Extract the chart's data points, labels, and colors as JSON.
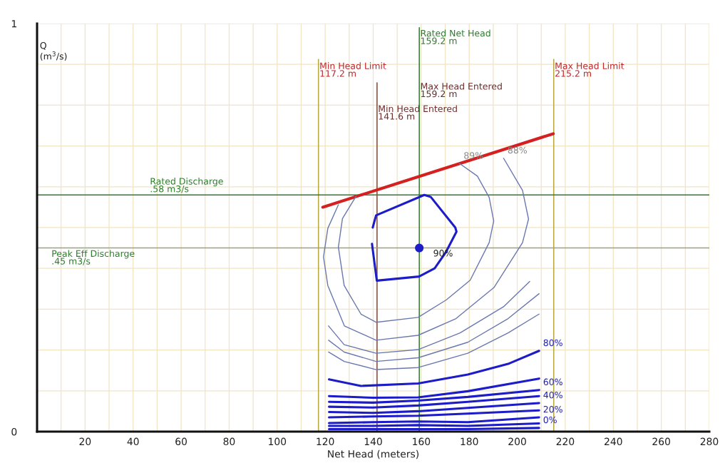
{
  "chart_data": {
    "type": "line",
    "xlabel": "Net Head (meters)",
    "ylabel": "Q\n(m$^{3}$/s)",
    "xlim": [
      0,
      280
    ],
    "ylim": [
      0,
      1
    ],
    "xticks": [
      {
        "value": 0,
        "label": null
      },
      {
        "value": 10,
        "label": null
      },
      20,
      {
        "value": 30,
        "label": null
      },
      40,
      {
        "value": 50,
        "label": null
      },
      60,
      {
        "value": 70,
        "label": null
      },
      80,
      {
        "value": 90,
        "label": null
      },
      100,
      {
        "value": 110,
        "label": null
      },
      120,
      {
        "value": 130,
        "label": null
      },
      140,
      {
        "value": 150,
        "label": null
      },
      160,
      {
        "value": 170,
        "label": null
      },
      180,
      {
        "value": 190,
        "label": null
      },
      200,
      {
        "value": 210,
        "label": null
      },
      220,
      {
        "value": 230,
        "label": null
      },
      240,
      {
        "value": 250,
        "label": null
      },
      260,
      {
        "value": 270,
        "label": null
      },
      280
    ],
    "yticks": [
      0,
      {
        "value": 0.1,
        "label": null
      },
      {
        "value": 0.2,
        "label": null
      },
      {
        "value": 0.3,
        "label": null
      },
      {
        "value": 0.4,
        "label": null
      },
      {
        "value": 0.5,
        "label": null
      },
      {
        "value": 0.6,
        "label": null
      },
      {
        "value": 0.7,
        "label": null
      },
      {
        "value": 0.8,
        "label": null
      },
      {
        "value": 0.9,
        "label": null
      },
      1
    ],
    "grid": true,
    "legend": false,
    "series": [
      {
        "color": "#d42020",
        "x": [
          119,
          215
        ],
        "values": [
          0.55,
          0.73
        ]
      },
      {
        "color": "#1c1cc8",
        "x": [
          139.8,
          141.2,
          161.3,
          164,
          174.2,
          174.7,
          170.3,
          165.6,
          159.1,
          141.5,
          139.5
        ],
        "values": [
          0.5,
          0.53,
          0.58,
          0.575,
          0.5,
          0.49,
          0.44,
          0.4,
          0.38,
          0.37,
          0.46
        ]
      },
      {
        "type": "scatter",
        "marker": "circle",
        "name": "90%",
        "color": "#1c1cc8",
        "x": [
          159.2
        ],
        "values": [
          0.45
        ]
      },
      {
        "name": "89%",
        "color": "#6a78b0",
        "x": [
          132.9,
          127.2,
          125.5,
          127.9,
          134.9,
          141.2,
          158.7,
          170.5,
          180.4,
          188.3,
          190.2,
          188.3,
          183.4,
          176.0
        ],
        "values": [
          0.577,
          0.522,
          0.452,
          0.358,
          0.288,
          0.268,
          0.28,
          0.323,
          0.371,
          0.463,
          0.516,
          0.574,
          0.626,
          0.657
        ]
      },
      {
        "name": "88%",
        "color": "#6a78b0",
        "x": [
          125.5,
          121.1,
          119.3,
          121.1,
          128.0,
          141.2,
          158.7,
          174.5,
          190.3,
          202.2,
          204.7,
          202.2,
          194.3
        ],
        "values": [
          0.556,
          0.498,
          0.428,
          0.358,
          0.259,
          0.224,
          0.236,
          0.277,
          0.353,
          0.463,
          0.521,
          0.591,
          0.67
        ]
      },
      {
        "color": "#6a78b0",
        "x": [
          121.4,
          127.9,
          141.2,
          158.7,
          176.2,
          194.3,
          205.2
        ],
        "values": [
          0.259,
          0.213,
          0.192,
          0.201,
          0.242,
          0.306,
          0.368
        ]
      },
      {
        "color": "#6a78b0",
        "x": [
          121.4,
          127.9,
          141.2,
          158.7,
          179.4,
          196.2,
          209.1
        ],
        "values": [
          0.224,
          0.195,
          0.172,
          0.181,
          0.219,
          0.277,
          0.338
        ]
      },
      {
        "color": "#6a78b0",
        "x": [
          121.4,
          127.9,
          141.2,
          158.7,
          179.4,
          196.2,
          209.1
        ],
        "values": [
          0.195,
          0.172,
          0.152,
          0.157,
          0.192,
          0.242,
          0.288
        ]
      },
      {
        "name": "80%",
        "color": "#1c1cc8",
        "x": [
          121.6,
          134.9,
          158.7,
          179.4,
          196.2,
          209.1
        ],
        "values": [
          0.128,
          0.112,
          0.118,
          0.14,
          0.166,
          0.198
        ]
      },
      {
        "color": "#1c1cc8",
        "x": [
          121.6,
          139.9,
          158.7,
          179.4,
          209.1
        ],
        "values": [
          0.087,
          0.083,
          0.084,
          0.099,
          0.13
        ]
      },
      {
        "name": "60%",
        "color": "#1c1cc8",
        "x": [
          121.6,
          139.9,
          158.7,
          179.4,
          209.1
        ],
        "values": [
          0.073,
          0.071,
          0.076,
          0.085,
          0.102
        ]
      },
      {
        "color": "#1c1cc8",
        "x": [
          121.6,
          139.9,
          158.7,
          179.4,
          209.1
        ],
        "values": [
          0.061,
          0.059,
          0.064,
          0.073,
          0.087
        ]
      },
      {
        "name": "40%",
        "color": "#1c1cc8",
        "x": [
          121.6,
          139.9,
          158.7,
          179.4,
          209.1
        ],
        "values": [
          0.048,
          0.046,
          0.05,
          0.058,
          0.07
        ]
      },
      {
        "color": "#1c1cc8",
        "x": [
          121.6,
          139.9,
          158.7,
          179.4,
          209.1
        ],
        "values": [
          0.035,
          0.037,
          0.039,
          0.044,
          0.052
        ]
      },
      {
        "name": "20%",
        "color": "#1c1cc8",
        "x": [
          121.6,
          139.9,
          158.7,
          179.4,
          209.1
        ],
        "values": [
          0.021,
          0.023,
          0.025,
          0.023,
          0.035
        ]
      },
      {
        "color": "#1c1cc8",
        "x": [
          121.6,
          139.9,
          158.7,
          179.4,
          209.1
        ],
        "values": [
          0.014,
          0.014,
          0.016,
          0.014,
          0.02
        ]
      },
      {
        "name": "0%",
        "color": "#1c1cc8",
        "x": [
          121.6,
          139.9,
          158.7,
          179.4,
          209.1
        ],
        "values": [
          0.006,
          0.006,
          0.006,
          0.006,
          0.009
        ]
      }
    ],
    "ref_lines": [
      {
        "axis": "x",
        "value": 117.2,
        "label": "Min Head Limit\n117.2 m",
        "color": "#b8a840"
      },
      {
        "axis": "x",
        "value": 141.6,
        "label": "Min Head Entered\n141.6 m",
        "color": "#7a4a3a"
      },
      {
        "axis": "x",
        "value": 159.2,
        "label": "Rated Net Head\n159.2 m",
        "color": "#2e7d2e"
      },
      {
        "axis": "x",
        "value": 215.2,
        "label": "Max Head Limit\n215.2 m",
        "color": "#b8a840"
      },
      {
        "axis": "y",
        "value": 0.58,
        "label": "Rated Discharge\n.58 m3/s",
        "color": "#2e7d2e"
      },
      {
        "axis": "y",
        "value": 0.45,
        "label": "Peak Eff Discharge\n.45 m3/s",
        "color": "#9ca27c"
      }
    ],
    "annotations": [
      {
        "text": "Max Head Entered\n159.2 m",
        "x": 159.2,
        "y": 0.855
      }
    ]
  }
}
